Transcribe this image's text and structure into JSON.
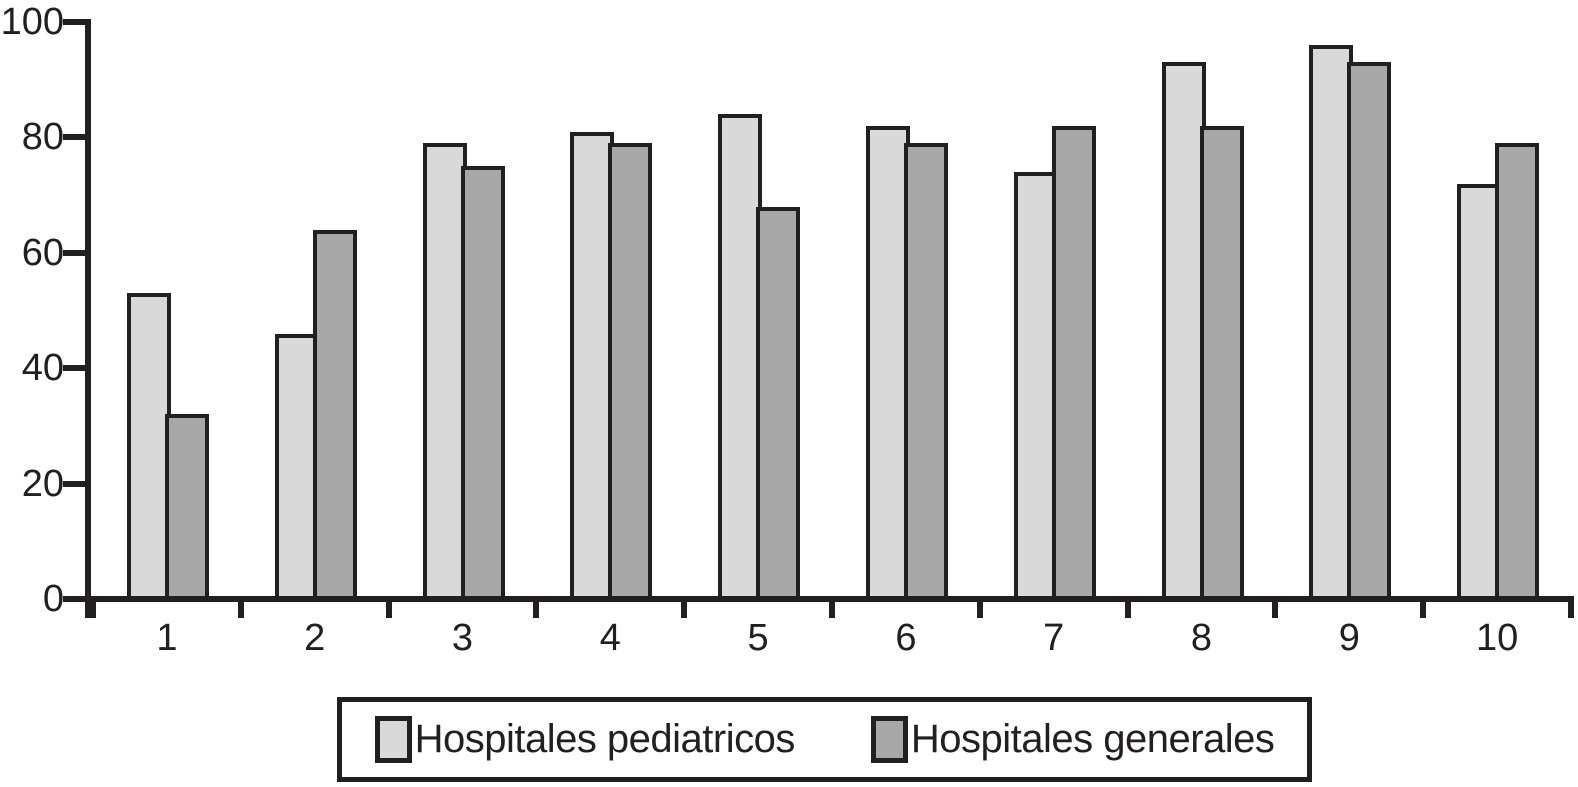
{
  "figure": {
    "background": "#ffffff",
    "text_color": "#231f20"
  },
  "chart_data": {
    "type": "bar",
    "title": "",
    "xlabel": "",
    "ylabel": "",
    "categories": [
      "1",
      "2",
      "3",
      "4",
      "5",
      "6",
      "7",
      "8",
      "9",
      "10"
    ],
    "series": [
      {
        "name": "Hospitales pediatricos",
        "color": "#d9d9d9",
        "values": [
          53,
          46,
          79,
          81,
          84,
          82,
          74,
          93,
          96,
          72
        ]
      },
      {
        "name": "Hospitales generales",
        "color": "#a8a8a8",
        "values": [
          32,
          64,
          75,
          79,
          68,
          79,
          82,
          82,
          93,
          79
        ]
      }
    ],
    "ylim": [
      0,
      100
    ],
    "y_ticks": [
      0,
      20,
      40,
      60,
      80,
      100
    ],
    "grid": false,
    "legend_position": "bottom-box",
    "axis_color": "#231f20",
    "bar_border_color": "#231f20",
    "legend_border_color": "#231f20"
  }
}
